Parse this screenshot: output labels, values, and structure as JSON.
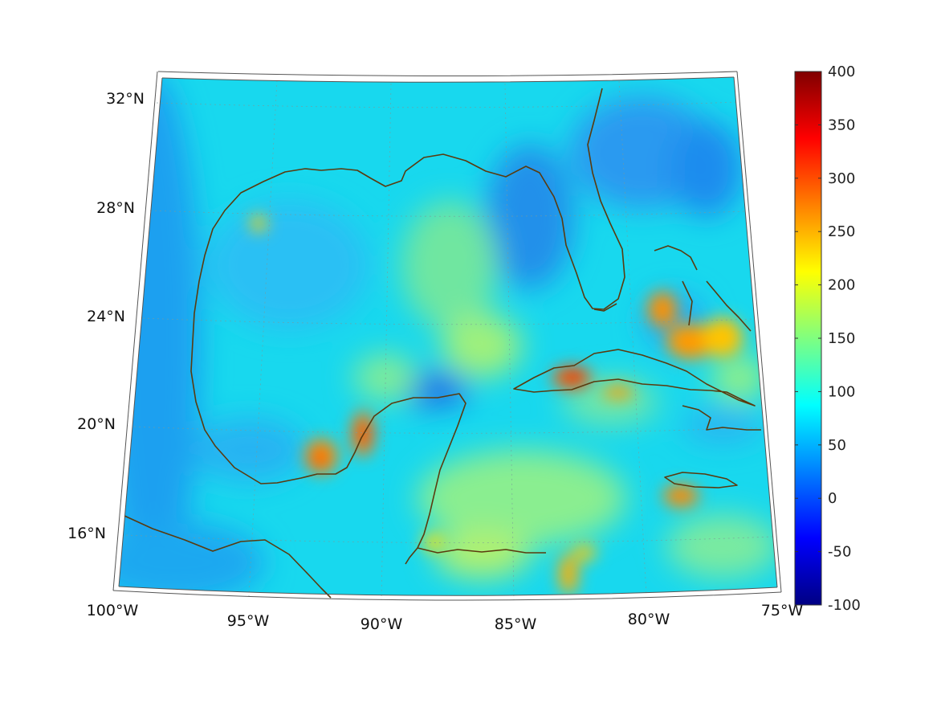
{
  "map": {
    "lat_labels": [
      "32°N",
      "28°N",
      "24°N",
      "20°N",
      "16°N"
    ],
    "lon_labels": [
      "100°W",
      "95°W",
      "90°W",
      "85°W",
      "80°W",
      "75°W"
    ],
    "lat_values": [
      32,
      28,
      24,
      20,
      16
    ],
    "lon_values": [
      -100,
      -95,
      -90,
      -85,
      -80,
      -75
    ],
    "extent": {
      "lon_min": -100,
      "lon_max": -75,
      "lat_min": 14,
      "lat_max": 33
    },
    "grid": "on"
  },
  "colorbar": {
    "labels": [
      "400",
      "350",
      "300",
      "250",
      "200",
      "150",
      "100",
      "50",
      "0",
      "-50",
      "-100"
    ],
    "min": -100,
    "max": 400,
    "colormap": "jet",
    "placement": "right"
  },
  "colors": {
    "coast": "#5a3a0e",
    "grid": "#7a9a9a",
    "frame": "#555555"
  }
}
